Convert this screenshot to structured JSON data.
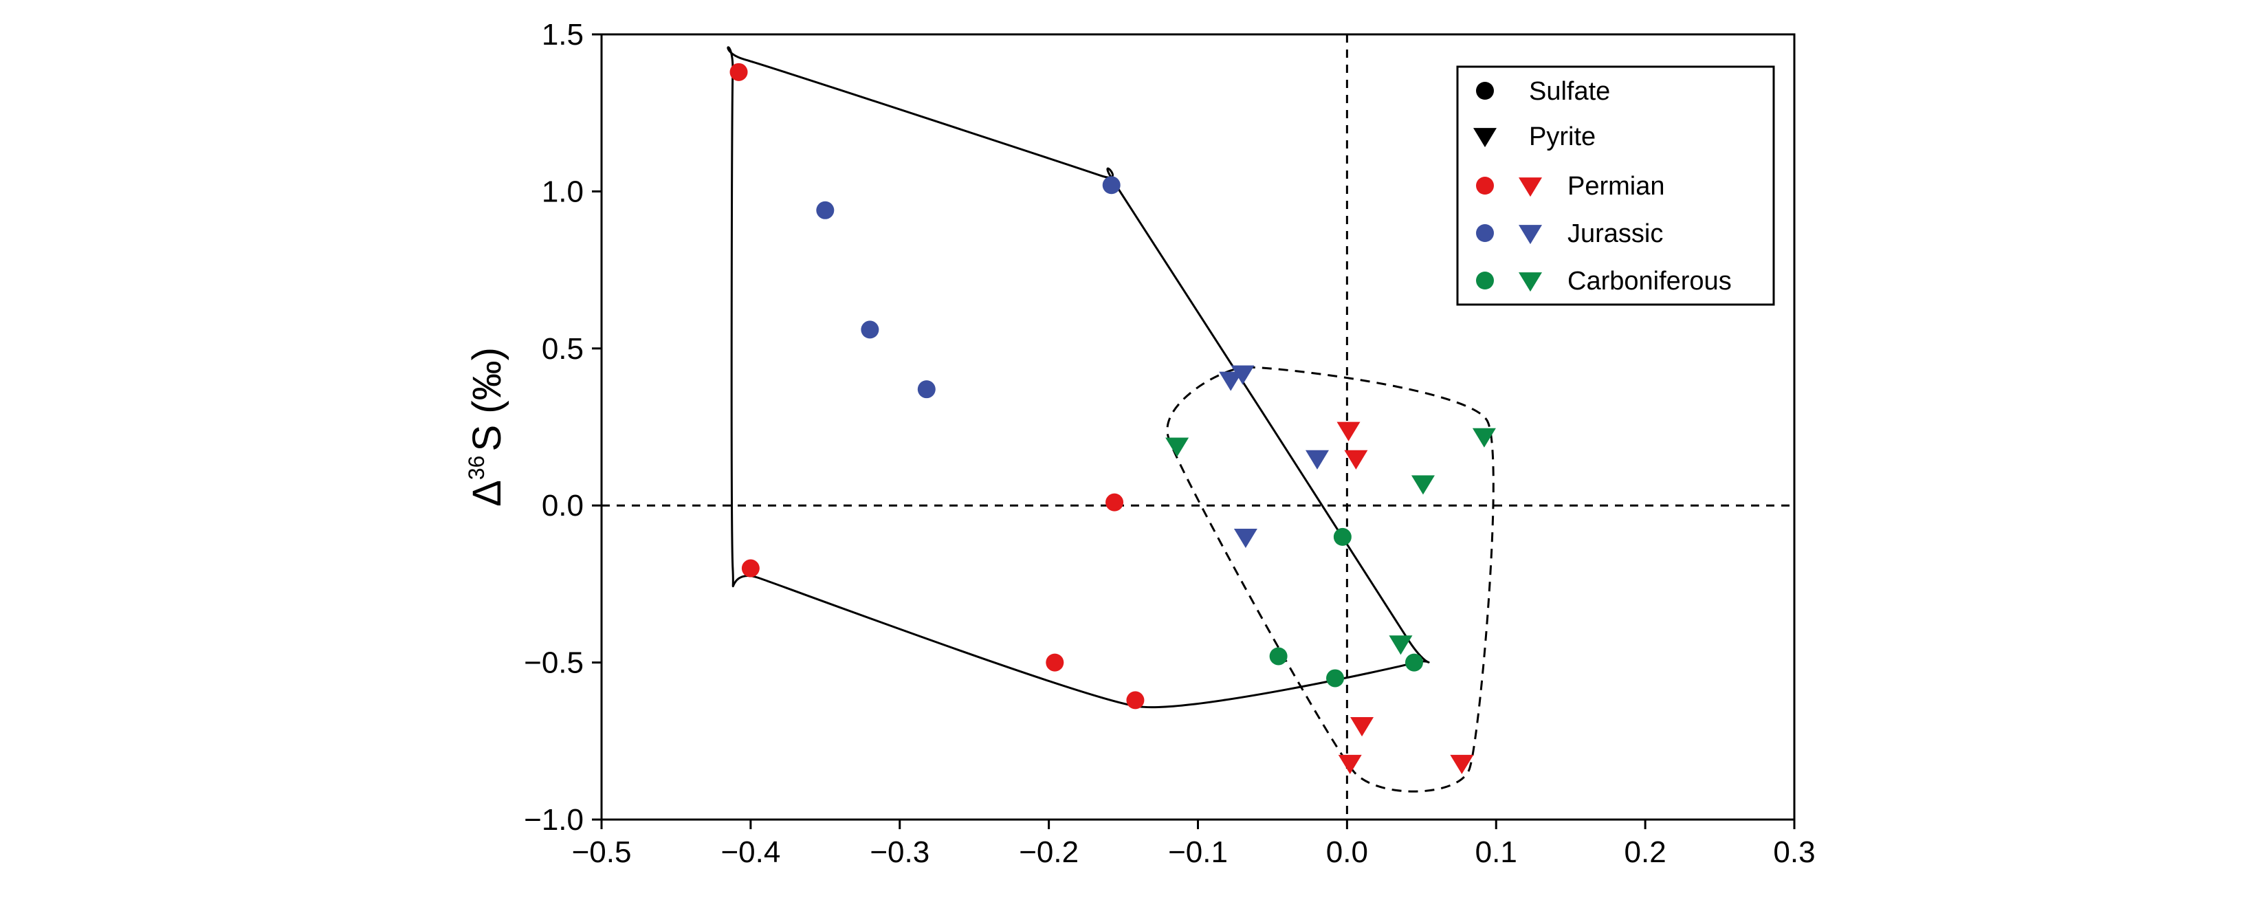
{
  "chart_data": {
    "type": "scatter",
    "title": "",
    "xlabel": "",
    "ylabel": {
      "prefix": "Δ",
      "superscript": "36",
      "main": "S (‰)"
    },
    "xlim": [
      -0.5,
      0.3
    ],
    "ylim": [
      -1.0,
      1.5
    ],
    "xticks": [
      -0.5,
      -0.4,
      -0.3,
      -0.2,
      -0.1,
      0.0,
      0.1,
      0.2,
      0.3
    ],
    "xtick_labels": [
      "−0.5",
      "−0.4",
      "−0.3",
      "−0.2",
      "−0.1",
      "0.0",
      "0.1",
      "0.2",
      "0.3"
    ],
    "yticks": [
      -1.0,
      -0.5,
      0.0,
      0.5,
      1.0,
      1.5
    ],
    "ytick_labels": [
      "−1.0",
      "−0.5",
      "0.0",
      "0.5",
      "1.0",
      "1.5"
    ],
    "grid": false,
    "legend_position": "top-right",
    "reference_lines": {
      "x": 0.0,
      "y": 0.0,
      "style": "dashed"
    },
    "legend": [
      {
        "label": "Sulfate",
        "markers": [
          "circle"
        ],
        "colors": [
          "#000000"
        ]
      },
      {
        "label": "Pyrite",
        "markers": [
          "triangle-down"
        ],
        "colors": [
          "#000000"
        ]
      },
      {
        "label": "Permian",
        "markers": [
          "circle",
          "triangle-down"
        ],
        "colors": [
          "#e3191b",
          "#e3191b"
        ]
      },
      {
        "label": "Jurassic",
        "markers": [
          "circle",
          "triangle-down"
        ],
        "colors": [
          "#3b4fa0",
          "#3b4fa0"
        ]
      },
      {
        "label": "Carboniferous",
        "markers": [
          "circle",
          "triangle-down"
        ],
        "colors": [
          "#0b8a45",
          "#0b8a45"
        ]
      }
    ],
    "series": [
      {
        "group": "Permian",
        "type": "Sulfate",
        "marker": "circle",
        "color": "#e3191b",
        "points": [
          [
            -0.408,
            1.38
          ],
          [
            -0.4,
            -0.2
          ],
          [
            -0.156,
            0.01
          ],
          [
            -0.196,
            -0.5
          ],
          [
            -0.142,
            -0.62
          ]
        ]
      },
      {
        "group": "Jurassic",
        "type": "Sulfate",
        "marker": "circle",
        "color": "#3b4fa0",
        "points": [
          [
            -0.35,
            0.94
          ],
          [
            -0.32,
            0.56
          ],
          [
            -0.282,
            0.37
          ],
          [
            -0.158,
            1.02
          ]
        ]
      },
      {
        "group": "Carboniferous",
        "type": "Sulfate",
        "marker": "circle",
        "color": "#0b8a45",
        "points": [
          [
            -0.003,
            -0.1
          ],
          [
            -0.046,
            -0.48
          ],
          [
            -0.008,
            -0.55
          ],
          [
            0.045,
            -0.5
          ]
        ]
      },
      {
        "group": "Permian",
        "type": "Pyrite",
        "marker": "triangle-down",
        "color": "#e3191b",
        "points": [
          [
            0.001,
            0.24
          ],
          [
            0.006,
            0.15
          ],
          [
            0.01,
            -0.7
          ],
          [
            0.002,
            -0.82
          ],
          [
            0.077,
            -0.82
          ]
        ]
      },
      {
        "group": "Jurassic",
        "type": "Pyrite",
        "marker": "triangle-down",
        "color": "#3b4fa0",
        "points": [
          [
            -0.078,
            0.4
          ],
          [
            -0.07,
            0.42
          ],
          [
            -0.02,
            0.15
          ],
          [
            -0.068,
            -0.1
          ]
        ]
      },
      {
        "group": "Carboniferous",
        "type": "Pyrite",
        "marker": "triangle-down",
        "color": "#0b8a45",
        "points": [
          [
            -0.114,
            0.19
          ],
          [
            0.092,
            0.22
          ],
          [
            0.051,
            0.07
          ],
          [
            0.036,
            -0.44
          ]
        ]
      }
    ],
    "envelopes": [
      {
        "style": "solid",
        "vertices": [
          [
            -0.404,
            1.42
          ],
          [
            -0.165,
            1.05
          ],
          [
            -0.155,
            1.02
          ],
          [
            0.04,
            -0.42
          ],
          [
            0.046,
            -0.5
          ],
          [
            -0.14,
            -0.64
          ],
          [
            -0.395,
            -0.23
          ],
          [
            -0.412,
            -0.2
          ],
          [
            -0.412,
            1.38
          ]
        ]
      },
      {
        "style": "dashed",
        "vertices": [
          [
            -0.068,
            0.44
          ],
          [
            0.094,
            0.27
          ],
          [
            0.082,
            -0.84
          ],
          [
            0.005,
            -0.85
          ],
          [
            -0.12,
            0.22
          ]
        ]
      }
    ]
  }
}
